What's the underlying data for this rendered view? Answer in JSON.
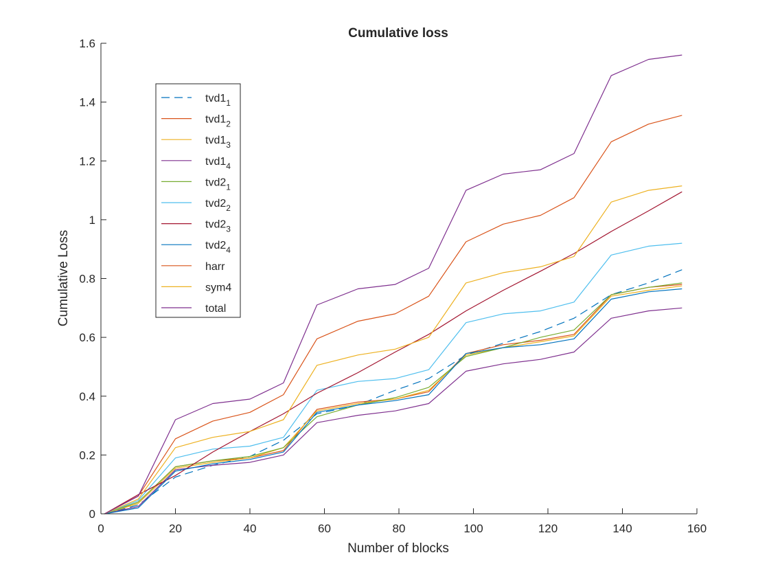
{
  "chart_data": {
    "type": "line",
    "title": "Cumulative loss",
    "xlabel": "Number of blocks",
    "ylabel": "Cumulative Loss",
    "xlim": [
      0,
      160
    ],
    "ylim": [
      0,
      1.6
    ],
    "xticks": [
      0,
      20,
      40,
      60,
      80,
      100,
      120,
      140,
      160
    ],
    "yticks": [
      0,
      0.2,
      0.4,
      0.6,
      0.8,
      1,
      1.2,
      1.4,
      1.6
    ],
    "xtick_labels": [
      "0",
      "20",
      "40",
      "60",
      "80",
      "100",
      "120",
      "140",
      "160"
    ],
    "ytick_labels": [
      "0",
      "0.2",
      "0.4",
      "0.6",
      "0.8",
      "1",
      "1.2",
      "1.4",
      "1.6"
    ],
    "grid": false,
    "legend_position": "upper-left inside",
    "x": [
      1,
      10,
      20,
      30,
      40,
      49,
      58,
      69,
      79,
      88,
      98,
      108,
      118,
      127,
      137,
      147,
      156
    ],
    "series": [
      {
        "name": "tvd1",
        "sub": "1",
        "color": "#0072BD",
        "dash": true,
        "values": [
          0.0,
          0.03,
          0.125,
          0.165,
          0.195,
          0.25,
          0.34,
          0.37,
          0.42,
          0.46,
          0.54,
          0.58,
          0.62,
          0.665,
          0.745,
          0.785,
          0.83
        ]
      },
      {
        "name": "tvd1",
        "sub": "2",
        "color": "#D95319",
        "dash": false,
        "values": [
          0.0,
          0.04,
          0.16,
          0.18,
          0.19,
          0.215,
          0.355,
          0.38,
          0.39,
          0.415,
          0.545,
          0.575,
          0.59,
          0.61,
          0.745,
          0.77,
          0.78
        ]
      },
      {
        "name": "tvd1",
        "sub": "3",
        "color": "#EDB120",
        "dash": false,
        "values": [
          0.0,
          0.035,
          0.155,
          0.175,
          0.19,
          0.225,
          0.35,
          0.375,
          0.39,
          0.42,
          0.54,
          0.565,
          0.585,
          0.605,
          0.74,
          0.76,
          0.775
        ]
      },
      {
        "name": "tvd1",
        "sub": "4",
        "color": "#7E2F8E",
        "dash": false,
        "values": [
          0.0,
          0.025,
          0.15,
          0.165,
          0.175,
          0.2,
          0.31,
          0.335,
          0.35,
          0.375,
          0.485,
          0.51,
          0.525,
          0.55,
          0.665,
          0.69,
          0.7
        ]
      },
      {
        "name": "tvd2",
        "sub": "1",
        "color": "#77AC30",
        "dash": false,
        "values": [
          0.0,
          0.04,
          0.16,
          0.18,
          0.195,
          0.225,
          0.33,
          0.37,
          0.395,
          0.43,
          0.535,
          0.565,
          0.6,
          0.625,
          0.745,
          0.77,
          0.785
        ]
      },
      {
        "name": "tvd2",
        "sub": "2",
        "color": "#4DBEEE",
        "dash": false,
        "values": [
          0.0,
          0.045,
          0.19,
          0.22,
          0.23,
          0.26,
          0.42,
          0.45,
          0.46,
          0.49,
          0.65,
          0.68,
          0.69,
          0.72,
          0.88,
          0.91,
          0.92
        ]
      },
      {
        "name": "tvd2",
        "sub": "3",
        "color": "#A2142F",
        "dash": false,
        "values": [
          0.0,
          0.065,
          0.13,
          0.21,
          0.28,
          0.34,
          0.41,
          0.48,
          0.55,
          0.61,
          0.69,
          0.76,
          0.825,
          0.885,
          0.96,
          1.03,
          1.095
        ]
      },
      {
        "name": "tvd2",
        "sub": "4",
        "color": "#0072BD",
        "dash": false,
        "values": [
          0.0,
          0.02,
          0.145,
          0.17,
          0.185,
          0.21,
          0.345,
          0.37,
          0.385,
          0.405,
          0.545,
          0.565,
          0.575,
          0.595,
          0.73,
          0.755,
          0.765
        ]
      },
      {
        "name": "harr",
        "sub": "",
        "color": "#D95319",
        "dash": false,
        "values": [
          0.0,
          0.06,
          0.255,
          0.315,
          0.345,
          0.405,
          0.595,
          0.655,
          0.68,
          0.74,
          0.925,
          0.985,
          1.015,
          1.075,
          1.265,
          1.325,
          1.355
        ]
      },
      {
        "name": "sym4",
        "sub": "",
        "color": "#EDB120",
        "dash": false,
        "values": [
          0.0,
          0.05,
          0.225,
          0.26,
          0.28,
          0.32,
          0.505,
          0.54,
          0.56,
          0.6,
          0.785,
          0.82,
          0.84,
          0.875,
          1.06,
          1.1,
          1.115
        ]
      },
      {
        "name": "total",
        "sub": "",
        "color": "#7E2F8E",
        "dash": false,
        "values": [
          0.0,
          0.06,
          0.32,
          0.375,
          0.39,
          0.445,
          0.71,
          0.765,
          0.78,
          0.835,
          1.1,
          1.155,
          1.17,
          1.225,
          1.49,
          1.545,
          1.56
        ]
      }
    ]
  }
}
